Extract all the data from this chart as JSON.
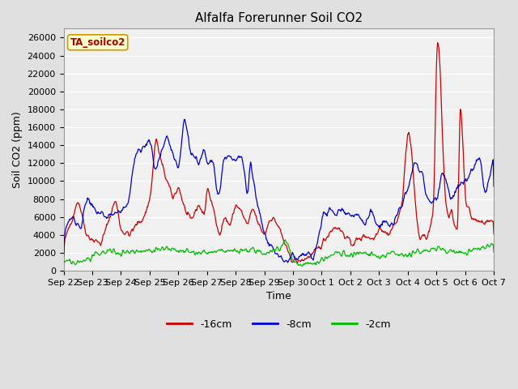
{
  "title": "Alfalfa Forerunner Soil CO2",
  "xlabel": "Time",
  "ylabel": "Soil CO2 (ppm)",
  "ylim": [
    0,
    27000
  ],
  "yticks": [
    0,
    2000,
    4000,
    6000,
    8000,
    10000,
    12000,
    14000,
    16000,
    18000,
    20000,
    22000,
    24000,
    26000
  ],
  "xtick_labels": [
    "Sep 22",
    "Sep 23",
    "Sep 24",
    "Sep 25",
    "Sep 26",
    "Sep 27",
    "Sep 28",
    "Sep 29",
    "Sep 30",
    "Oct 1",
    "Oct 2",
    "Oct 3",
    "Oct 4",
    "Oct 5",
    "Oct 6",
    "Oct 7"
  ],
  "legend_label": "TA_soilco2",
  "line_labels": [
    "-16cm",
    "-8cm",
    "-2cm"
  ],
  "line_colors": [
    "#cc0000",
    "#0000cc",
    "#00bb00"
  ],
  "background_color": "#e0e0e0",
  "plot_bg_color": "#f0f0f0",
  "grid_color": "#ffffff",
  "title_fontsize": 11,
  "label_fontsize": 9,
  "tick_fontsize": 8
}
